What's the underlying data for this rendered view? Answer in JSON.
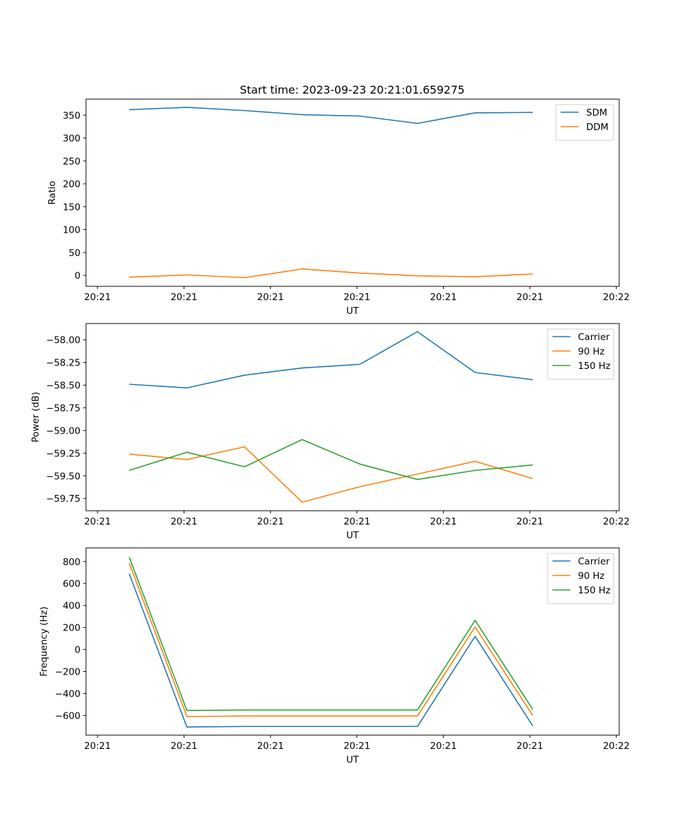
{
  "figure_title": "Start time: 2023-09-23 20:21:01.659275",
  "chart_data": [
    {
      "type": "line",
      "title": "Start time: 2023-09-23 20:21:01.659275",
      "xlabel": "UT",
      "ylabel": "Ratio",
      "x_index_range": [
        -0.75,
        8.5
      ],
      "x_points": [
        0,
        1,
        2,
        3,
        4,
        5,
        6,
        7
      ],
      "x_ticks": [
        {
          "pos": -0.55,
          "label": "20:21"
        },
        {
          "pos": 0.95,
          "label": "20:21"
        },
        {
          "pos": 2.45,
          "label": "20:21"
        },
        {
          "pos": 3.95,
          "label": "20:21"
        },
        {
          "pos": 5.45,
          "label": "20:21"
        },
        {
          "pos": 6.95,
          "label": "20:21"
        },
        {
          "pos": 8.45,
          "label": "20:22"
        }
      ],
      "ylim": [
        -24,
        385
      ],
      "y_ticks": [
        0,
        50,
        100,
        150,
        200,
        250,
        300,
        350
      ],
      "y_tick_labels": [
        "0",
        "50",
        "100",
        "150",
        "200",
        "250",
        "300",
        "350"
      ],
      "legend_position": "top-right",
      "series": [
        {
          "name": "SDM",
          "color": "#1f77b4",
          "values": [
            362,
            367,
            360,
            351,
            348,
            332,
            355,
            356
          ]
        },
        {
          "name": "DDM",
          "color": "#ff7f0e",
          "values": [
            -4,
            1,
            -5,
            14,
            5,
            -1,
            -3,
            3
          ]
        }
      ]
    },
    {
      "type": "line",
      "title": "",
      "xlabel": "UT",
      "ylabel": "Power (dB)",
      "x_index_range": [
        -0.75,
        8.5
      ],
      "x_points": [
        0,
        1,
        2,
        3,
        4,
        5,
        6,
        7
      ],
      "x_ticks": [
        {
          "pos": -0.55,
          "label": "20:21"
        },
        {
          "pos": 0.95,
          "label": "20:21"
        },
        {
          "pos": 2.45,
          "label": "20:21"
        },
        {
          "pos": 3.95,
          "label": "20:21"
        },
        {
          "pos": 5.45,
          "label": "20:21"
        },
        {
          "pos": 6.95,
          "label": "20:21"
        },
        {
          "pos": 8.45,
          "label": "20:22"
        }
      ],
      "ylim": [
        -59.885,
        -57.82
      ],
      "y_ticks": [
        -59.75,
        -59.5,
        -59.25,
        -59.0,
        -58.75,
        -58.5,
        -58.25,
        -58.0
      ],
      "y_tick_labels": [
        "−59.75",
        "−59.50",
        "−59.25",
        "−59.00",
        "−58.75",
        "−58.50",
        "−58.25",
        "−58.00"
      ],
      "legend_position": "top-right",
      "series": [
        {
          "name": "Carrier",
          "color": "#1f77b4",
          "values": [
            -58.49,
            -58.53,
            -58.39,
            -58.31,
            -58.27,
            -57.91,
            -58.36,
            -58.44
          ]
        },
        {
          "name": "90 Hz",
          "color": "#ff7f0e",
          "values": [
            -59.26,
            -59.32,
            -59.18,
            -59.79,
            -59.62,
            -59.48,
            -59.34,
            -59.53
          ]
        },
        {
          "name": "150 Hz",
          "color": "#2ca02c",
          "values": [
            -59.44,
            -59.24,
            -59.4,
            -59.1,
            -59.37,
            -59.54,
            -59.44,
            -59.38
          ]
        }
      ]
    },
    {
      "type": "line",
      "title": "",
      "xlabel": "UT",
      "ylabel": "Frequency (Hz)",
      "x_index_range": [
        -0.75,
        8.5
      ],
      "x_points": [
        0,
        1,
        2,
        3,
        4,
        5,
        6,
        7
      ],
      "x_ticks": [
        {
          "pos": -0.55,
          "label": "20:21"
        },
        {
          "pos": 0.95,
          "label": "20:21"
        },
        {
          "pos": 2.45,
          "label": "20:21"
        },
        {
          "pos": 3.95,
          "label": "20:21"
        },
        {
          "pos": 5.45,
          "label": "20:21"
        },
        {
          "pos": 6.95,
          "label": "20:21"
        },
        {
          "pos": 8.45,
          "label": "20:22"
        }
      ],
      "ylim": [
        -779,
        924
      ],
      "y_ticks": [
        -600,
        -400,
        -200,
        0,
        200,
        400,
        600,
        800
      ],
      "y_tick_labels": [
        "−600",
        "−400",
        "−200",
        "0",
        "200",
        "400",
        "600",
        "800"
      ],
      "legend_position": "top-right",
      "series": [
        {
          "name": "Carrier",
          "color": "#1f77b4",
          "values": [
            690,
            -705,
            -700,
            -700,
            -700,
            -700,
            120,
            -695
          ]
        },
        {
          "name": "90 Hz",
          "color": "#ff7f0e",
          "values": [
            785,
            -610,
            -605,
            -605,
            -605,
            -605,
            205,
            -600
          ]
        },
        {
          "name": "150 Hz",
          "color": "#2ca02c",
          "values": [
            840,
            -555,
            -550,
            -550,
            -550,
            -550,
            265,
            -545
          ]
        }
      ]
    }
  ]
}
